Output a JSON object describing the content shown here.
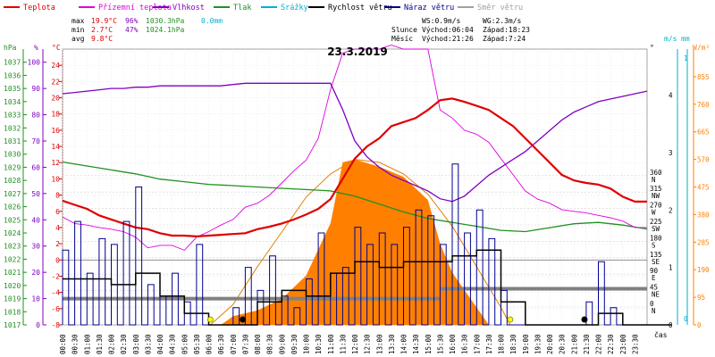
{
  "legend": [
    {
      "label": "Teplota",
      "color": "#e00000"
    },
    {
      "label": "Přízemní teplota",
      "color": "#e000e0"
    },
    {
      "label": "Vlhkost",
      "color": "#8000c0"
    },
    {
      "label": "Tlak",
      "color": "#209020"
    },
    {
      "label": "Srážky",
      "color": "#00b0d0"
    },
    {
      "label": "Rychlost větru",
      "color": "#000000"
    },
    {
      "label": "Náraz větru",
      "color": "#000090"
    },
    {
      "label": "Směr větru",
      "color": "#a0a0a0"
    }
  ],
  "stats": {
    "max": {
      "label": "max",
      "temp": "19.9°C",
      "hum": "96%",
      "press": "1030.3hPa",
      "rain": "0.0mm"
    },
    "min": {
      "label": "min",
      "temp": "2.7°C",
      "hum": "47%",
      "press": "1024.1hPa"
    },
    "avg": {
      "label": "avg",
      "temp": "9.8°C"
    }
  },
  "wind_info": {
    "ws": "WS:0.9m/s",
    "wg": "WG:2.3m/s"
  },
  "sun": {
    "label": "Slunce",
    "rise": "Východ:06:04",
    "set": "Západ:18:23"
  },
  "moon": {
    "label": "Měsíc",
    "rise": "Východ:21:26",
    "set": "Západ:7:24"
  },
  "date": "23.3.2019",
  "axis_units": {
    "hpa": "hPa",
    "pct": "%",
    "degc": "°C",
    "deg": "°",
    "ms": "m/s",
    "mm": "mm",
    "wm2": "W/m²",
    "time": "čas"
  },
  "colors": {
    "temp": "#e00000",
    "ground": "#e000e0",
    "hum": "#8000c0",
    "press": "#209020",
    "rain": "#00b0d0",
    "wind": "#000000",
    "gust": "#000090",
    "dir": "#a0a0a0",
    "solar": "#ff8000",
    "solar_theory": "#e08000"
  },
  "chart_data": {
    "type": "line",
    "title": "23.3.2019",
    "xlabel": "čas",
    "x_ticks": [
      "00:00",
      "00:30",
      "01:00",
      "01:30",
      "02:00",
      "02:30",
      "03:00",
      "03:30",
      "04:00",
      "04:30",
      "05:00",
      "05:30",
      "06:00",
      "06:30",
      "07:00",
      "07:30",
      "08:00",
      "08:30",
      "09:00",
      "09:30",
      "10:00",
      "10:30",
      "11:00",
      "11:30",
      "12:00",
      "12:30",
      "13:00",
      "13:30",
      "14:00",
      "14:30",
      "15:00",
      "15:30",
      "16:00",
      "16:30",
      "17:00",
      "17:30",
      "18:00",
      "18:30",
      "19:00",
      "19:30",
      "20:00",
      "20:30",
      "21:00",
      "21:30",
      "22:00",
      "22:30",
      "23:00",
      "23:30"
    ],
    "axes": {
      "pressure": {
        "unit": "hPa",
        "range": [
          1017,
          1038
        ],
        "ticks": [
          1017,
          1018,
          1019,
          1020,
          1021,
          1022,
          1023,
          1024,
          1025,
          1026,
          1027,
          1028,
          1029,
          1030,
          1031,
          1032,
          1033,
          1034,
          1035,
          1036,
          1037
        ]
      },
      "humidity": {
        "unit": "%",
        "range": [
          0,
          105
        ],
        "ticks": [
          0,
          10,
          20,
          30,
          40,
          50,
          60,
          70,
          80,
          90,
          100
        ]
      },
      "temperature": {
        "unit": "°C",
        "range": [
          -8,
          26
        ],
        "ticks": [
          -8,
          -6,
          -4,
          -2,
          0,
          2,
          4,
          6,
          8,
          10,
          12,
          14,
          16,
          18,
          20,
          22,
          24
        ]
      },
      "direction": {
        "unit": "°",
        "ticks": [
          {
            "v": 0,
            "l": "0",
            "d": "N"
          },
          {
            "v": 45,
            "l": "45",
            "d": "NE"
          },
          {
            "v": 90,
            "l": "90",
            "d": "E"
          },
          {
            "v": 135,
            "l": "135",
            "d": "SE"
          },
          {
            "v": 180,
            "l": "180",
            "d": "S"
          },
          {
            "v": 225,
            "l": "225",
            "d": "SW"
          },
          {
            "v": 270,
            "l": "270",
            "d": "W"
          },
          {
            "v": 315,
            "l": "315",
            "d": "NW"
          },
          {
            "v": 360,
            "l": "360",
            "d": "N"
          }
        ]
      },
      "wind": {
        "unit": "m/s",
        "range": [
          0,
          4.8
        ],
        "ticks": [
          0,
          1,
          2,
          3,
          4
        ]
      },
      "rain": {
        "unit": "mm",
        "ticks": [
          0,
          1
        ]
      },
      "solar": {
        "unit": "W/m²",
        "range": [
          0,
          950
        ],
        "ticks": [
          0,
          95,
          190,
          285,
          380,
          475,
          570,
          665,
          760,
          855
        ]
      }
    },
    "series": [
      {
        "name": "Teplota",
        "key": "temp",
        "axis": "temperature",
        "x": [
          0,
          0.5,
          1,
          1.5,
          2,
          2.5,
          3,
          3.5,
          4,
          4.5,
          5,
          5.5,
          6,
          6.5,
          7,
          7.5,
          8,
          8.5,
          9,
          9.5,
          10,
          10.5,
          11,
          11.5,
          12,
          12.5,
          13,
          13.5,
          14,
          14.5,
          15,
          15.5,
          16,
          16.5,
          17,
          17.5,
          18,
          18.5,
          19,
          19.5,
          20,
          20.5,
          21,
          21.5,
          22,
          22.5,
          23,
          23.5,
          24
        ],
        "y": [
          7.3,
          6.8,
          6.3,
          5.5,
          5.0,
          4.5,
          4.0,
          3.8,
          3.3,
          3.0,
          3.0,
          2.9,
          3.0,
          3.1,
          3.2,
          3.3,
          3.8,
          4.1,
          4.5,
          5.0,
          5.6,
          6.3,
          7.5,
          10.0,
          12.5,
          14.0,
          15.0,
          16.5,
          17.0,
          17.5,
          18.5,
          19.7,
          19.9,
          19.5,
          19.0,
          18.5,
          17.5,
          16.5,
          15.0,
          13.5,
          12.0,
          10.5,
          9.8,
          9.5,
          9.3,
          8.8,
          7.8,
          7.2,
          7.2
        ]
      },
      {
        "name": "Přízemní teplota",
        "key": "ground",
        "axis": "temperature",
        "x": [
          0,
          0.5,
          1,
          1.5,
          2,
          2.5,
          3,
          3.5,
          4,
          4.5,
          5,
          5.5,
          6,
          6.5,
          7,
          7.5,
          8,
          8.5,
          9,
          9.5,
          10,
          10.5,
          11,
          11.5,
          12,
          12.5,
          13,
          13.5,
          14,
          14.5,
          15,
          15.5,
          16,
          16.5,
          17,
          17.5,
          18,
          18.5,
          19,
          19.5,
          20,
          20.5,
          21,
          21.5,
          22,
          22.5,
          23,
          23.5,
          24
        ],
        "y": [
          5.3,
          4.5,
          4.3,
          4.0,
          3.8,
          3.5,
          2.8,
          1.5,
          1.8,
          1.8,
          1.2,
          2.8,
          3.5,
          4.3,
          5.0,
          6.5,
          7.0,
          8.0,
          9.5,
          11.0,
          12.3,
          15.0,
          21.0,
          25.5,
          26.0,
          26.0,
          26.0,
          26.5,
          26.0,
          26.0,
          26.0,
          18.5,
          17.5,
          16.0,
          15.5,
          14.5,
          12.5,
          10.5,
          8.5,
          7.5,
          7.0,
          6.2,
          6.0,
          5.8,
          5.5,
          5.2,
          4.8,
          4.0,
          4.0
        ]
      },
      {
        "name": "Vlhkost",
        "key": "hum",
        "axis": "humidity",
        "x": [
          0,
          0.5,
          1,
          1.5,
          2,
          2.5,
          3,
          3.5,
          4,
          4.5,
          5,
          5.5,
          6,
          6.5,
          7,
          7.5,
          8,
          8.5,
          9,
          9.5,
          10,
          10.5,
          11,
          11.5,
          12,
          12.5,
          13,
          13.5,
          14,
          14.5,
          15,
          15.5,
          16,
          16.5,
          17,
          17.5,
          18,
          18.5,
          19,
          19.5,
          20,
          20.5,
          21,
          21.5,
          22,
          22.5,
          23,
          23.5,
          24
        ],
        "y": [
          88,
          88.5,
          89,
          89.5,
          90,
          90,
          90.5,
          90.5,
          91,
          91,
          91,
          91,
          91,
          91,
          91.5,
          92,
          92,
          92,
          92,
          92,
          92,
          92,
          92,
          82,
          70,
          64,
          60,
          57,
          55,
          53,
          51,
          48,
          47,
          49,
          53,
          57,
          60,
          63,
          66,
          70,
          74,
          78,
          81,
          83,
          85,
          86,
          87,
          88,
          89
        ]
      },
      {
        "name": "Tlak",
        "key": "press",
        "axis": "pressure",
        "x": [
          0,
          1,
          2,
          3,
          4,
          5,
          6,
          7,
          8,
          9,
          10,
          11,
          12,
          13,
          14,
          15,
          16,
          17,
          18,
          19,
          20,
          21,
          22,
          23,
          24
        ],
        "y": [
          1029.4,
          1029.1,
          1028.8,
          1028.5,
          1028.1,
          1027.9,
          1027.7,
          1027.6,
          1027.5,
          1027.4,
          1027.3,
          1027.2,
          1026.8,
          1026.2,
          1025.6,
          1025.1,
          1024.8,
          1024.5,
          1024.2,
          1024.1,
          1024.4,
          1024.7,
          1024.8,
          1024.6,
          1024.3
        ]
      },
      {
        "name": "Náraz větru",
        "key": "gust",
        "axis": "wind",
        "x": [
          0,
          0.5,
          1,
          1.5,
          2,
          2.5,
          3,
          3.5,
          4,
          4.5,
          5,
          5.5,
          6,
          6.5,
          7,
          7.5,
          8,
          8.5,
          9,
          9.5,
          10,
          10.5,
          11,
          11.5,
          12,
          12.5,
          13,
          13.5,
          14,
          14.5,
          15,
          15.5,
          16,
          16.5,
          17,
          17.5,
          18,
          18.5,
          19,
          19.5,
          20,
          20.5,
          21,
          21.5,
          22,
          22.5,
          23,
          23.5,
          24
        ],
        "y": [
          1.3,
          1.8,
          0.9,
          1.5,
          1.4,
          1.8,
          2.4,
          0.7,
          0.5,
          0.9,
          0.4,
          1.4,
          0,
          0,
          0.3,
          1.0,
          0.6,
          1.2,
          0.5,
          0.3,
          0.8,
          1.6,
          0.9,
          1.0,
          1.7,
          1.4,
          1.6,
          1.4,
          1.7,
          2.0,
          1.9,
          1.4,
          2.8,
          1.6,
          2.0,
          1.5,
          0.6,
          0,
          0,
          0,
          0,
          0,
          0,
          0.4,
          1.1,
          0.3,
          0,
          0,
          0
        ]
      },
      {
        "name": "Rychlost větru",
        "key": "wind",
        "axis": "wind",
        "x": [
          0,
          1,
          2,
          3,
          4,
          5,
          6,
          7,
          8,
          9,
          10,
          11,
          12,
          13,
          14,
          15,
          16,
          17,
          18,
          19,
          20,
          21,
          22,
          23,
          24
        ],
        "y": [
          0.8,
          0.8,
          0.7,
          0.9,
          0.5,
          0.2,
          0,
          0,
          0.4,
          0.6,
          0.5,
          0.9,
          1.1,
          1.0,
          1.1,
          1.1,
          1.2,
          1.3,
          0.4,
          0,
          0,
          0,
          0.2,
          0,
          0
        ]
      },
      {
        "name": "Směr větru",
        "key": "dir",
        "axis": "direction",
        "x": [
          0,
          3,
          6,
          9,
          12,
          15,
          18,
          21,
          24
        ],
        "y": [
          23,
          23,
          23,
          23,
          23,
          23,
          50,
          50,
          50
        ]
      },
      {
        "name": "Sluneční záření",
        "key": "solar",
        "axis": "solar",
        "x": [
          6.5,
          7,
          8,
          9,
          10,
          11,
          11.5,
          12,
          13,
          14,
          15,
          15.5,
          16,
          17,
          17.5
        ],
        "y": [
          0,
          30,
          50,
          90,
          170,
          350,
          560,
          570,
          545,
          510,
          430,
          280,
          180,
          60,
          0
        ]
      },
      {
        "name": "Teoretické záření",
        "key": "solar_theory",
        "axis": "solar",
        "x": [
          6.07,
          7,
          8,
          9,
          10,
          11,
          12,
          13,
          14,
          15,
          16,
          17,
          18,
          18.38
        ],
        "y": [
          0,
          70,
          200,
          320,
          440,
          520,
          570,
          560,
          520,
          450,
          340,
          200,
          60,
          0
        ]
      }
    ]
  }
}
